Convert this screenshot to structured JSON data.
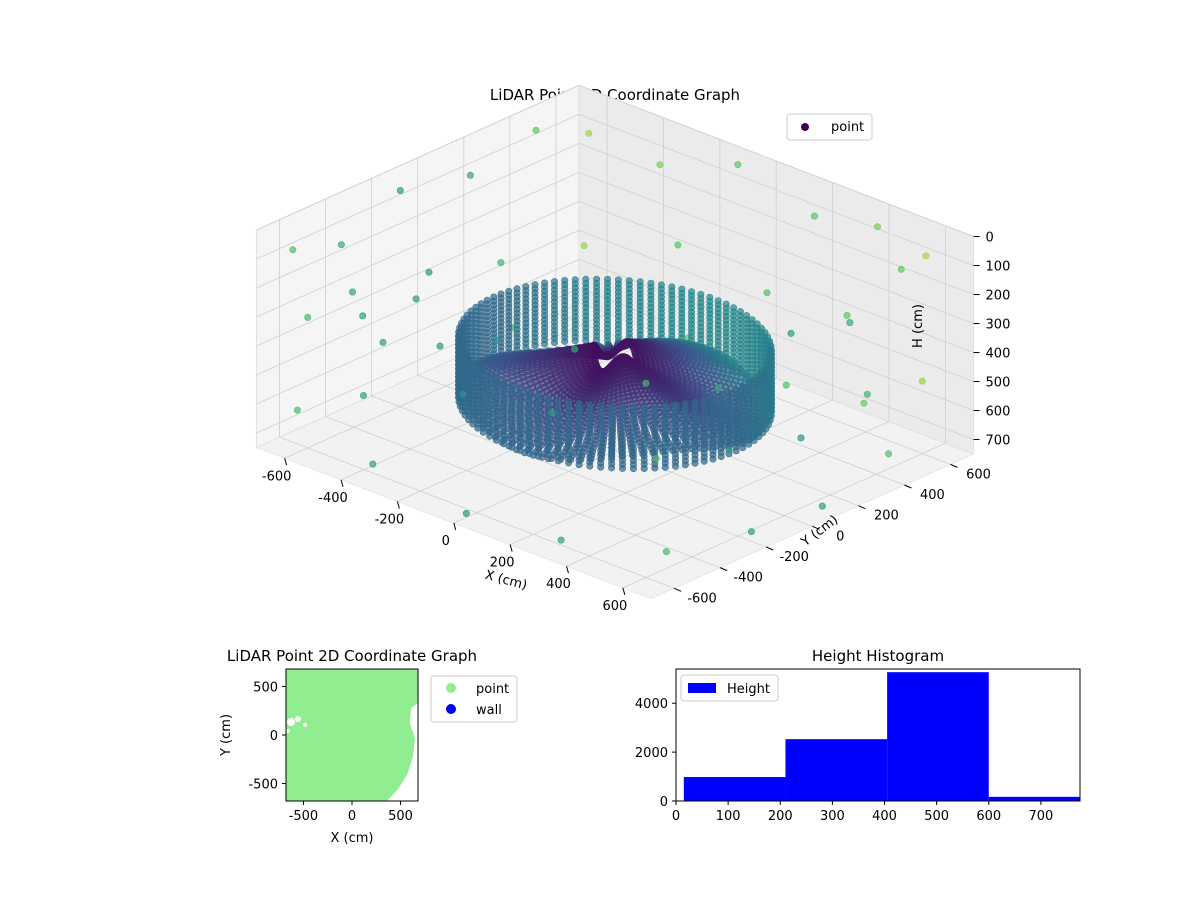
{
  "chart_data": [
    {
      "type": "scatter",
      "projection": "3d",
      "title": "LiDAR Point 3D Coordinate Graph",
      "xlabel": "X (cm)",
      "ylabel": "Y (cm)",
      "zlabel": "H (cm)",
      "xlim": [
        -700,
        700
      ],
      "ylim": [
        -700,
        700
      ],
      "zlim": [
        750,
        0
      ],
      "xticks": [
        "-600",
        "-400",
        "-200",
        "0",
        "200",
        "400",
        "600"
      ],
      "yticks": [
        "-600",
        "-400",
        "-200",
        "0",
        "200",
        "400",
        "600"
      ],
      "zticks": [
        "0",
        "100",
        "200",
        "300",
        "400",
        "500",
        "600",
        "700"
      ],
      "z_axis_inverted": true,
      "colormap": "viridis",
      "grid": true,
      "legend": {
        "placement": "upper-right",
        "entries": [
          {
            "label": "point",
            "color": "#440154"
          }
        ]
      },
      "series": [
        {
          "name": "point",
          "description_points": "radial spokes from a ring of radius ~400 cm at heights 400-600 cm, with sparse outer points at radius ~600-700 cm and heights 0-750 cm",
          "points": [
            [
              -620,
              -640,
              60
            ],
            [
              -400,
              -650,
              120
            ],
            [
              -150,
              -680,
              40
            ],
            [
              120,
              -660,
              90
            ],
            [
              380,
              -640,
              30
            ],
            [
              600,
              -600,
              80
            ],
            [
              -660,
              -380,
              150
            ],
            [
              -680,
              -100,
              70
            ],
            [
              -660,
              180,
              110
            ],
            [
              -640,
              440,
              40
            ],
            [
              -600,
              620,
              100
            ],
            [
              660,
              -360,
              160
            ],
            [
              690,
              -80,
              60
            ],
            [
              670,
              200,
              130
            ],
            [
              640,
              460,
              50
            ],
            [
              580,
              640,
              90
            ],
            [
              -380,
              660,
              140
            ],
            [
              -120,
              680,
              50
            ],
            [
              160,
              670,
              120
            ],
            [
              400,
              650,
              60
            ],
            [
              -600,
              -600,
              300
            ],
            [
              -300,
              -640,
              260
            ],
            [
              0,
              -660,
              320
            ],
            [
              300,
              -640,
              280
            ],
            [
              620,
              -580,
              340
            ],
            [
              -650,
              -300,
              420
            ],
            [
              -660,
              0,
              380
            ],
            [
              -650,
              300,
              450
            ],
            [
              650,
              -300,
              400
            ],
            [
              660,
              0,
              460
            ],
            [
              650,
              300,
              420
            ],
            [
              -300,
              640,
              380
            ],
            [
              0,
              660,
              440
            ],
            [
              300,
              640,
              400
            ],
            [
              -600,
              600,
              480
            ],
            [
              600,
              600,
              500
            ],
            [
              -620,
              -620,
              620
            ],
            [
              -320,
              -660,
              680
            ],
            [
              20,
              -670,
              720
            ],
            [
              340,
              -650,
              700
            ],
            [
              640,
              -560,
              660
            ],
            [
              -680,
              -260,
              720
            ],
            [
              -670,
              60,
              660
            ],
            [
              -660,
              360,
              700
            ],
            [
              680,
              -240,
              690
            ],
            [
              670,
              80,
              720
            ],
            [
              660,
              380,
              650
            ],
            [
              -280,
              660,
              700
            ],
            [
              60,
              670,
              740
            ],
            [
              360,
              640,
              680
            ]
          ]
        }
      ]
    },
    {
      "type": "scatter",
      "title": "LiDAR Point 2D Coordinate Graph",
      "xlabel": "X (cm)",
      "ylabel": "Y (cm)",
      "xlim": [
        -680,
        680
      ],
      "ylim": [
        -680,
        680
      ],
      "xticks": [
        "-500",
        "0",
        "500"
      ],
      "yticks": [
        "-500",
        "0",
        "500"
      ],
      "legend": {
        "placement": "outside-right",
        "entries": [
          {
            "label": "point",
            "color": "#90ee90"
          },
          {
            "label": "wall",
            "color": "#0000ff"
          }
        ]
      },
      "series": [
        {
          "name": "point",
          "color": "#90ee90",
          "description": "dense cloud filling most of the plot; clipped toward lower-right"
        },
        {
          "name": "wall",
          "color": "#0000ff",
          "points": []
        }
      ]
    },
    {
      "type": "bar",
      "subtype": "histogram",
      "title": "Height Histogram",
      "xlim": [
        0,
        775
      ],
      "ylim": [
        0,
        5400
      ],
      "xticks": [
        "0",
        "100",
        "200",
        "300",
        "400",
        "500",
        "600",
        "700"
      ],
      "yticks": [
        "0",
        "2000",
        "4000"
      ],
      "legend": {
        "placement": "upper-left",
        "entries": [
          {
            "label": "Height",
            "color": "#0000ff"
          }
        ]
      },
      "bins": [
        {
          "x0": 15,
          "x1": 210,
          "count": 980
        },
        {
          "x0": 210,
          "x1": 405,
          "count": 2530
        },
        {
          "x0": 405,
          "x1": 600,
          "count": 5270
        },
        {
          "x0": 600,
          "x1": 775,
          "count": 170
        }
      ],
      "bar_color": "#0000ff"
    }
  ]
}
